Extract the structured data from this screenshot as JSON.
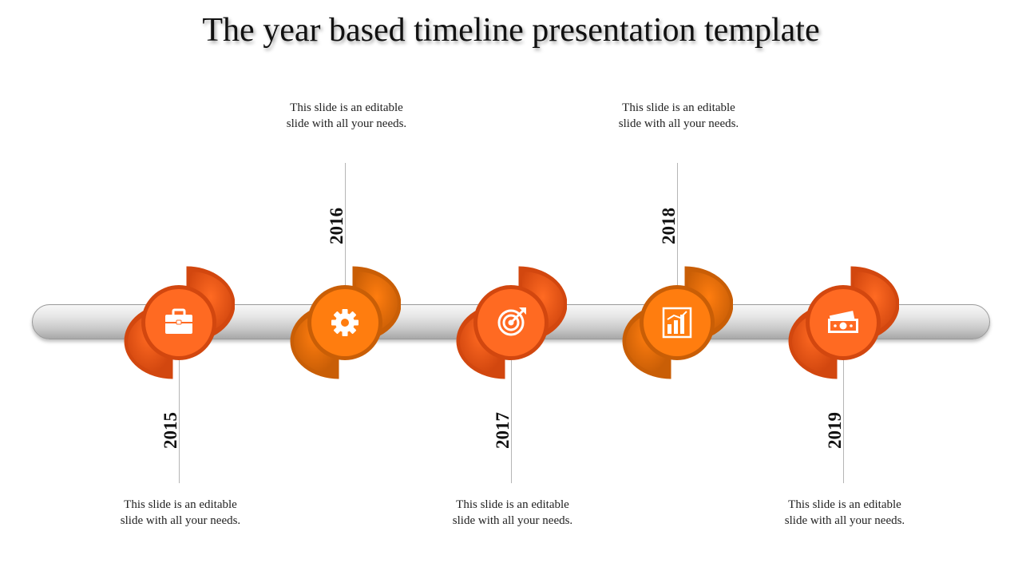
{
  "title": "The year based timeline presentation template",
  "milestones": [
    {
      "year": "2015",
      "text": "This slide is an editable slide with all your needs.",
      "icon": "briefcase-icon",
      "color": "#ff6a22",
      "dark": "#d2470f",
      "position": "bottom"
    },
    {
      "year": "2016",
      "text": "This slide is an editable slide with all your needs.",
      "icon": "gear-icon",
      "color": "#ff7d0f",
      "dark": "#c95e06",
      "position": "top"
    },
    {
      "year": "2017",
      "text": "This slide is an editable slide with all your needs.",
      "icon": "target-icon",
      "color": "#ff6a22",
      "dark": "#d2470f",
      "position": "bottom"
    },
    {
      "year": "2018",
      "text": "This slide is an editable slide with all your needs.",
      "icon": "bar-chart-icon",
      "color": "#ff7d0f",
      "dark": "#c95e06",
      "position": "top"
    },
    {
      "year": "2019",
      "text": "This slide is an editable slide with all your needs.",
      "icon": "money-icon",
      "color": "#ff6a22",
      "dark": "#d2470f",
      "position": "bottom"
    }
  ]
}
